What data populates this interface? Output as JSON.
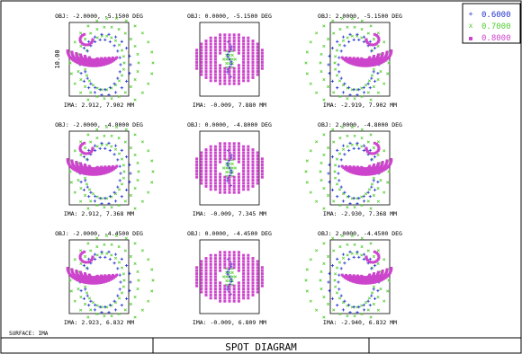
{
  "title": "SPOT DIAGRAM",
  "surface_label": "SURFACE: IMA",
  "scale_label": "10.00",
  "legend": [
    {
      "label": "0.6000",
      "color": "#2233cc",
      "marker": "plus"
    },
    {
      "label": "0.7000",
      "color": "#55cc33",
      "marker": "cross"
    },
    {
      "label": "0.8000",
      "color": "#cc44cc",
      "marker": "square"
    }
  ],
  "chart_data": {
    "type": "scatter",
    "title": "SPOT DIAGRAM",
    "surface": "IMA",
    "box_scale": "10.00",
    "wavelengths": [
      "0.6000",
      "0.7000",
      "0.8000"
    ],
    "fields": [
      {
        "obj": "OBJ: -2.0000, -5.1500 DEG",
        "ima": "IMA: 2.912, 7.902 MM",
        "shape": "left"
      },
      {
        "obj": "OBJ: 0.0000, -5.1500 DEG",
        "ima": "IMA: -0.009, 7.880 MM",
        "shape": "center"
      },
      {
        "obj": "OBJ: 2.0000, -5.1500 DEG",
        "ima": "IMA: -2.919, 7.902 MM",
        "shape": "right"
      },
      {
        "obj": "OBJ: -2.0000, -4.8000 DEG",
        "ima": "IMA: 2.912, 7.368 MM",
        "shape": "left"
      },
      {
        "obj": "OBJ: 0.0000, -4.8000 DEG",
        "ima": "IMA: -0.009, 7.345 MM",
        "shape": "center"
      },
      {
        "obj": "OBJ: 2.0000, -4.8000 DEG",
        "ima": "IMA: -2.930, 7.368 MM",
        "shape": "right"
      },
      {
        "obj": "OBJ: -2.0000, -4.4500 DEG",
        "ima": "IMA: 2.923, 6.832 MM",
        "shape": "left"
      },
      {
        "obj": "OBJ: 0.0000, -4.4500 DEG",
        "ima": "IMA: -0.009, 6.809 MM",
        "shape": "center"
      },
      {
        "obj": "OBJ: 2.0000, -4.4500 DEG",
        "ima": "IMA: -2.940, 6.832 MM",
        "shape": "right"
      }
    ]
  }
}
